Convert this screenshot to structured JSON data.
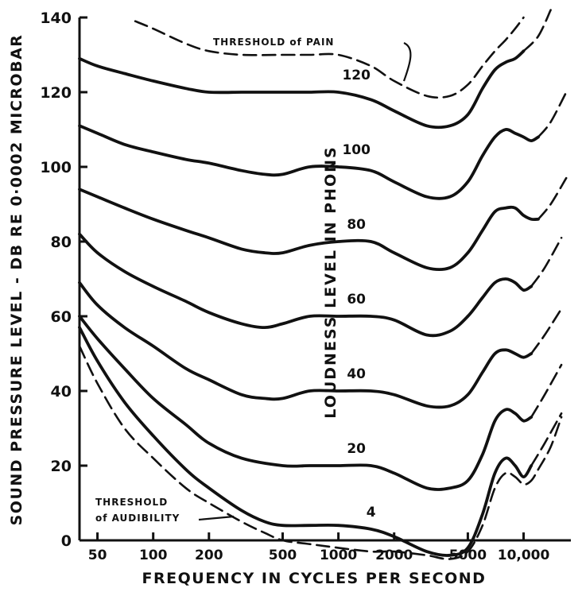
{
  "chart_data": {
    "type": "line",
    "xlabel": "FREQUENCY IN CYCLES PER SECOND",
    "ylabel": "SOUND PRESSURE LEVEL - DB RE 0·0002 MICROBAR",
    "inner_label": "LOUDNESS LEVEL IN PHONS",
    "x_scale": "log",
    "xlim": [
      40,
      18000
    ],
    "ylim": [
      0,
      140
    ],
    "x_ticks": [
      50,
      100,
      200,
      500,
      1000,
      2000,
      5000,
      10000
    ],
    "x_tick_labels": [
      "50",
      "100",
      "200",
      "500",
      "1000",
      "2000",
      "5000",
      "10,000"
    ],
    "y_ticks": [
      0,
      20,
      40,
      60,
      80,
      100,
      120,
      140
    ],
    "y_tick_labels": [
      "0",
      "20",
      "40",
      "60",
      "80",
      "100",
      "120",
      "140"
    ],
    "grid": false,
    "series": [
      {
        "name": "4",
        "style": "solid",
        "x": [
          40,
          50,
          70,
          100,
          150,
          200,
          300,
          400,
          500,
          700,
          1000,
          1500,
          2000,
          3000,
          4000,
          5000,
          6000,
          7000,
          8000,
          9000,
          10000,
          11000
        ],
        "y": [
          57,
          48,
          37,
          28,
          19,
          14,
          8,
          5,
          4,
          4,
          4,
          3,
          1,
          -3,
          -4,
          -2,
          7,
          18,
          22,
          20,
          17,
          20
        ]
      },
      {
        "name": "4-ext",
        "style": "dashed",
        "x": [
          11000,
          13000,
          16000
        ],
        "y": [
          20,
          26,
          34
        ]
      },
      {
        "name": "20",
        "style": "solid",
        "x": [
          40,
          50,
          70,
          100,
          150,
          200,
          300,
          500,
          700,
          1000,
          1500,
          2000,
          3000,
          4000,
          5000,
          6000,
          7000,
          8000,
          9000,
          10000,
          11000
        ],
        "y": [
          60,
          54,
          46,
          38,
          31,
          26,
          22,
          20,
          20,
          20,
          20,
          18,
          14,
          14,
          16,
          23,
          32,
          35,
          34,
          32,
          33
        ]
      },
      {
        "name": "20-ext",
        "style": "dashed",
        "x": [
          11000,
          13000,
          16000
        ],
        "y": [
          33,
          39,
          47
        ]
      },
      {
        "name": "40",
        "style": "solid",
        "x": [
          40,
          50,
          70,
          100,
          150,
          200,
          300,
          400,
          500,
          700,
          1000,
          1500,
          2000,
          3000,
          4000,
          5000,
          6000,
          7000,
          8000,
          9000,
          10000,
          11000
        ],
        "y": [
          69,
          63,
          57,
          52,
          46,
          43,
          39,
          38,
          38,
          40,
          40,
          40,
          39,
          36,
          36,
          39,
          45,
          50,
          51,
          50,
          49,
          50
        ]
      },
      {
        "name": "40-ext",
        "style": "dashed",
        "x": [
          11000,
          13000,
          16000
        ],
        "y": [
          50,
          55,
          62
        ]
      },
      {
        "name": "60",
        "style": "solid",
        "x": [
          40,
          50,
          70,
          100,
          150,
          200,
          300,
          400,
          500,
          700,
          1000,
          1500,
          2000,
          3000,
          4000,
          5000,
          6000,
          7000,
          8000,
          9000,
          10000,
          11000
        ],
        "y": [
          82,
          77,
          72,
          68,
          64,
          61,
          58,
          57,
          58,
          60,
          60,
          60,
          59,
          55,
          56,
          60,
          65,
          69,
          70,
          69,
          67,
          68
        ]
      },
      {
        "name": "60-ext",
        "style": "dashed",
        "x": [
          11000,
          13000,
          16000
        ],
        "y": [
          68,
          73,
          81
        ]
      },
      {
        "name": "80",
        "style": "solid",
        "x": [
          40,
          50,
          70,
          100,
          150,
          200,
          300,
          400,
          500,
          700,
          1000,
          1500,
          2000,
          3000,
          4000,
          5000,
          6000,
          7000,
          8000,
          9000,
          10000,
          11000,
          12000
        ],
        "y": [
          94,
          92,
          89,
          86,
          83,
          81,
          78,
          77,
          77,
          79,
          80,
          80,
          77,
          73,
          73,
          77,
          83,
          88,
          89,
          89,
          87,
          86,
          86
        ]
      },
      {
        "name": "80-ext",
        "style": "dashed",
        "x": [
          12000,
          14000,
          17000
        ],
        "y": [
          86,
          90,
          97
        ]
      },
      {
        "name": "100",
        "style": "solid",
        "x": [
          40,
          50,
          70,
          100,
          150,
          200,
          300,
          400,
          500,
          700,
          1000,
          1500,
          2000,
          3000,
          4000,
          5000,
          6000,
          7000,
          8000,
          9000,
          10000,
          11000,
          12000
        ],
        "y": [
          111,
          109,
          106,
          104,
          102,
          101,
          99,
          98,
          98,
          100,
          100,
          99,
          96,
          92,
          92,
          96,
          103,
          108,
          110,
          109,
          108,
          107,
          108
        ]
      },
      {
        "name": "100-ext",
        "style": "dashed",
        "x": [
          12000,
          14000,
          17000
        ],
        "y": [
          108,
          112,
          120
        ]
      },
      {
        "name": "120",
        "style": "solid",
        "x": [
          40,
          50,
          70,
          100,
          150,
          200,
          300,
          400,
          500,
          700,
          1000,
          1500,
          2000,
          3000,
          4000,
          5000,
          6000,
          7000,
          8000,
          9000,
          10000
        ],
        "y": [
          129,
          127,
          125,
          123,
          121,
          120,
          120,
          120,
          120,
          120,
          120,
          118,
          115,
          111,
          111,
          114,
          121,
          126,
          128,
          129,
          131
        ]
      },
      {
        "name": "120-ext",
        "style": "dashed",
        "x": [
          10000,
          12000,
          14000
        ],
        "y": [
          131,
          135,
          142
        ]
      },
      {
        "name": "Threshold of Pain",
        "style": "dashed",
        "x": [
          80,
          100,
          150,
          200,
          300,
          500,
          700,
          1000,
          1500,
          2000,
          3000,
          4000,
          5000,
          6000,
          7000,
          8000,
          9000,
          10000
        ],
        "y": [
          139,
          137,
          133,
          131,
          130,
          130,
          130,
          130,
          127,
          123,
          119,
          119,
          122,
          127,
          131,
          134,
          137,
          140
        ]
      },
      {
        "name": "Threshold of Audibility",
        "style": "dashed",
        "x": [
          40,
          50,
          70,
          100,
          150,
          200,
          300,
          400,
          500,
          700,
          1000,
          1500,
          2000,
          3000,
          4000,
          5000,
          6000,
          7000,
          8000,
          9000,
          10000,
          11000,
          12000,
          14000,
          16000
        ],
        "y": [
          52,
          42,
          30,
          22,
          14,
          10,
          5,
          2,
          0,
          -1,
          -2,
          -3,
          -3,
          -4,
          -5,
          -3,
          4,
          14,
          18,
          17,
          15,
          16,
          19,
          25,
          33
        ]
      }
    ],
    "annotations": {
      "pain": "THRESHOLD of PAIN",
      "aud_line1": "THRESHOLD",
      "aud_line2": "of AUDIBILITY",
      "curve_labels": [
        "120",
        "100",
        "80",
        "60",
        "40",
        "20",
        "4"
      ]
    }
  }
}
